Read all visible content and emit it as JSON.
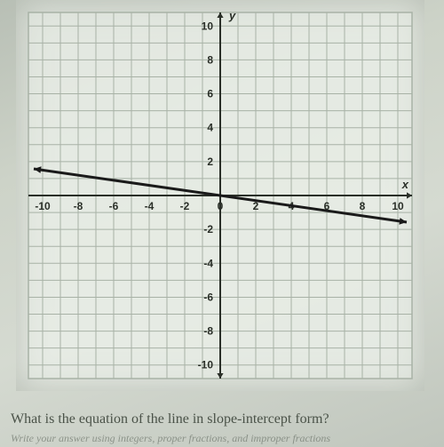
{
  "chart": {
    "type": "line",
    "xlim": [
      -10.8,
      10.8
    ],
    "ylim": [
      -10.8,
      10.8
    ],
    "xtick_step": 1,
    "ytick_step": 1,
    "xlabel_ticks": [
      -10,
      -8,
      -6,
      -4,
      -2,
      0,
      2,
      4,
      6,
      8,
      10
    ],
    "ylabel_ticks": [
      -10,
      -8,
      -6,
      -4,
      -2,
      2,
      4,
      6,
      8,
      10
    ],
    "grid_color": "#a8b2a6",
    "axis_color": "#2a2f28",
    "background_color": "#e8ede5",
    "line_color": "#1a1a1a",
    "line_width": 3,
    "tick_label_color": "#2a2f28",
    "tick_label_fontsize": 12,
    "tick_label_fontweight": "bold",
    "axis_label_x": "x",
    "axis_label_y": "y",
    "axis_label_fontsize": 13,
    "axis_label_fontweight": "bold",
    "series": {
      "points": [
        [
          -10.5,
          1.575
        ],
        [
          10.5,
          -1.575
        ]
      ],
      "arrowheads": true
    }
  },
  "question_text": "What is the equation of the line in slope-intercept form?",
  "footnote_text": "Write your answer using integers, proper fractions, and improper fractions"
}
